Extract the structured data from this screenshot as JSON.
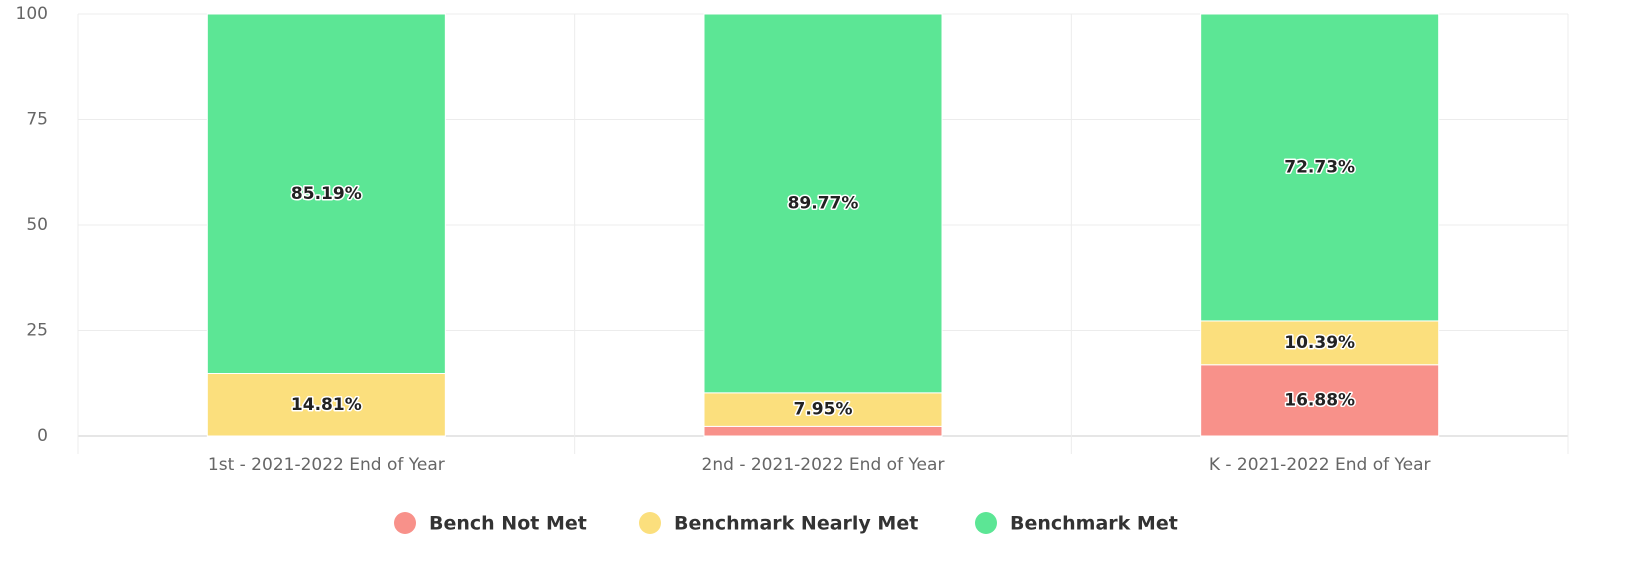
{
  "chart_data": {
    "type": "stacked_bar",
    "categories": [
      "1st - 2021-2022 End of Year",
      "2nd - 2021-2022 End of Year",
      "K - 2021-2022 End of Year"
    ],
    "series": [
      {
        "name": "Bench Not Met",
        "color": "#f8918a",
        "values": [
          0,
          2.28,
          16.88
        ],
        "value_labels": [
          null,
          null,
          "16.88%"
        ]
      },
      {
        "name": "Benchmark Nearly Met",
        "color": "#fbdf7d",
        "values": [
          14.81,
          7.95,
          10.39
        ],
        "value_labels": [
          "14.81%",
          "7.95%",
          "10.39%"
        ]
      },
      {
        "name": "Benchmark Met",
        "color": "#5ce695",
        "values": [
          85.19,
          89.77,
          72.73
        ],
        "value_labels": [
          "85.19%",
          "89.77%",
          "72.73%"
        ]
      }
    ],
    "ylim": [
      0,
      100
    ],
    "yticks": [
      0,
      25,
      50,
      75,
      100
    ],
    "grid": true,
    "legend": "bottom"
  }
}
